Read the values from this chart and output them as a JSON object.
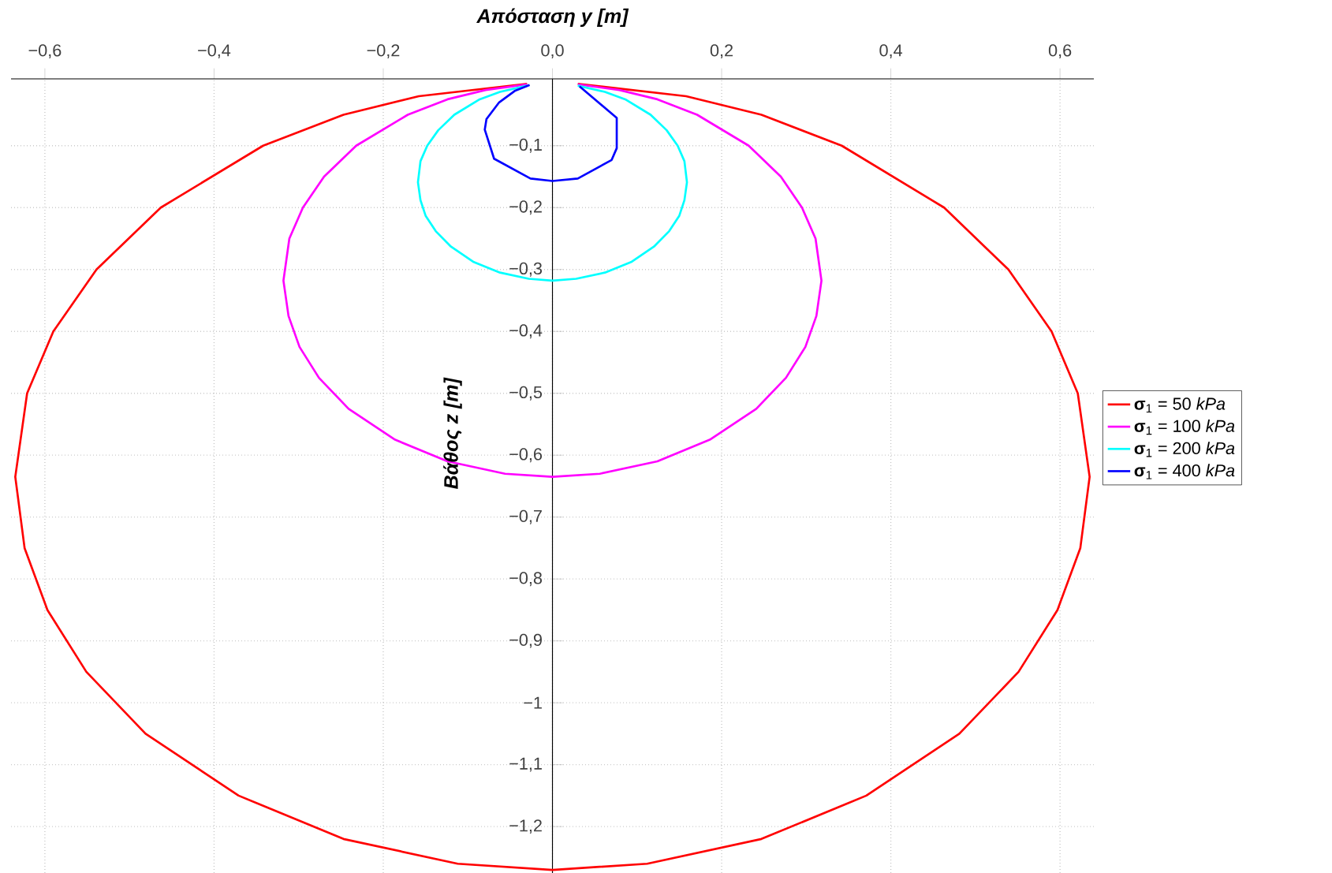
{
  "chart_data": {
    "type": "line",
    "xlabel": "Απόσταση y [m]",
    "ylabel": "Βάθος z [m]",
    "xlim": [
      -0.64,
      0.64
    ],
    "ylim": [
      -1.275,
      0.008
    ],
    "xticks": [
      {
        "value": -0.6,
        "label": "−0,6"
      },
      {
        "value": -0.4,
        "label": "−0,4"
      },
      {
        "value": -0.2,
        "label": "−0,2"
      },
      {
        "value": 0,
        "label": "0,0"
      },
      {
        "value": 0.2,
        "label": "0,2"
      },
      {
        "value": 0.4,
        "label": "0,4"
      },
      {
        "value": 0.6,
        "label": "0,6"
      }
    ],
    "yticks": [
      {
        "value": -0.1,
        "label": "−0,1"
      },
      {
        "value": -0.2,
        "label": "−0,2"
      },
      {
        "value": -0.3,
        "label": "−0,3"
      },
      {
        "value": -0.4,
        "label": "−0,4"
      },
      {
        "value": -0.5,
        "label": "−0,5"
      },
      {
        "value": -0.6,
        "label": "−0,6"
      },
      {
        "value": -0.7,
        "label": "−0,7"
      },
      {
        "value": -0.8,
        "label": "−0,8"
      },
      {
        "value": -0.9,
        "label": "−0,9"
      },
      {
        "value": -1,
        "label": "−1"
      },
      {
        "value": -1.1,
        "label": "−1,1"
      },
      {
        "value": -1.2,
        "label": "−1,2"
      }
    ],
    "grid": true,
    "legend": "right",
    "marker": "none",
    "line_style": "solid",
    "series": [
      {
        "name": "**σ**$_{1}$ = 50 *kPa*",
        "color": "#ff0000",
        "x": [
          0.03,
          0.158,
          0.247,
          0.342,
          0.463,
          0.539,
          0.59,
          0.621,
          0.635,
          0.624,
          0.597,
          0.551,
          0.481,
          0.371,
          0.247,
          0.112,
          0,
          -0.112,
          -0.247,
          -0.371,
          -0.481,
          -0.551,
          -0.597,
          -0.624,
          -0.635,
          -0.621,
          -0.59,
          -0.539,
          -0.463,
          -0.342,
          -0.247,
          -0.158,
          -0.03
        ],
        "values": [
          0,
          -0.02,
          -0.05,
          -0.1,
          -0.2,
          -0.3,
          -0.4,
          -0.5,
          -0.635,
          -0.75,
          -0.85,
          -0.95,
          -1.05,
          -1.15,
          -1.22,
          -1.26,
          -1.27,
          -1.26,
          -1.22,
          -1.15,
          -1.05,
          -0.95,
          -0.85,
          -0.75,
          -0.635,
          -0.5,
          -0.4,
          -0.3,
          -0.2,
          -0.1,
          -0.05,
          -0.02,
          0
        ]
      },
      {
        "name": "**σ**$_{1}$ = 100 *kPa*",
        "color": "#ff00ff",
        "x": [
          0.03,
          0.079,
          0.124,
          0.171,
          0.232,
          0.27,
          0.295,
          0.311,
          0.318,
          0.312,
          0.299,
          0.276,
          0.241,
          0.186,
          0.124,
          0.056,
          0,
          -0.056,
          -0.124,
          -0.186,
          -0.241,
          -0.276,
          -0.299,
          -0.312,
          -0.318,
          -0.311,
          -0.295,
          -0.27,
          -0.232,
          -0.171,
          -0.124,
          -0.079,
          -0.03
        ],
        "values": [
          -0.001,
          -0.01,
          -0.025,
          -0.05,
          -0.1,
          -0.15,
          -0.2,
          -0.25,
          -0.318,
          -0.375,
          -0.425,
          -0.475,
          -0.525,
          -0.575,
          -0.61,
          -0.63,
          -0.635,
          -0.63,
          -0.61,
          -0.575,
          -0.525,
          -0.475,
          -0.425,
          -0.375,
          -0.318,
          -0.25,
          -0.2,
          -0.15,
          -0.1,
          -0.05,
          -0.025,
          -0.01,
          -0.001
        ]
      },
      {
        "name": "**σ**$_{1}$ = 200 *kPa*",
        "color": "#00ffff",
        "x": [
          0.03,
          0.062,
          0.086,
          0.116,
          0.135,
          0.148,
          0.156,
          0.159,
          0.156,
          0.15,
          0.138,
          0.12,
          0.093,
          0.062,
          0.028,
          0,
          -0.028,
          -0.062,
          -0.093,
          -0.12,
          -0.138,
          -0.15,
          -0.156,
          -0.159,
          -0.156,
          -0.148,
          -0.135,
          -0.116,
          -0.086,
          -0.062,
          -0.03
        ],
        "values": [
          -0.003,
          -0.013,
          -0.025,
          -0.05,
          -0.075,
          -0.1,
          -0.125,
          -0.159,
          -0.188,
          -0.213,
          -0.238,
          -0.263,
          -0.288,
          -0.305,
          -0.315,
          -0.318,
          -0.315,
          -0.305,
          -0.288,
          -0.263,
          -0.238,
          -0.213,
          -0.188,
          -0.159,
          -0.125,
          -0.1,
          -0.075,
          -0.05,
          -0.025,
          -0.013,
          -0.003
        ]
      },
      {
        "name": "**σ**$_{1}$ = 400 *kPa*",
        "color": "#0000ff",
        "x": [
          0.032,
          0.076,
          0.076,
          0.07,
          0.03,
          0,
          -0.026,
          -0.069,
          -0.08,
          -0.078,
          -0.063,
          -0.044,
          -0.027
        ],
        "values": [
          -0.004,
          -0.055,
          -0.104,
          -0.123,
          -0.153,
          -0.157,
          -0.153,
          -0.121,
          -0.074,
          -0.057,
          -0.03,
          -0.011,
          -0.002
        ]
      }
    ]
  }
}
